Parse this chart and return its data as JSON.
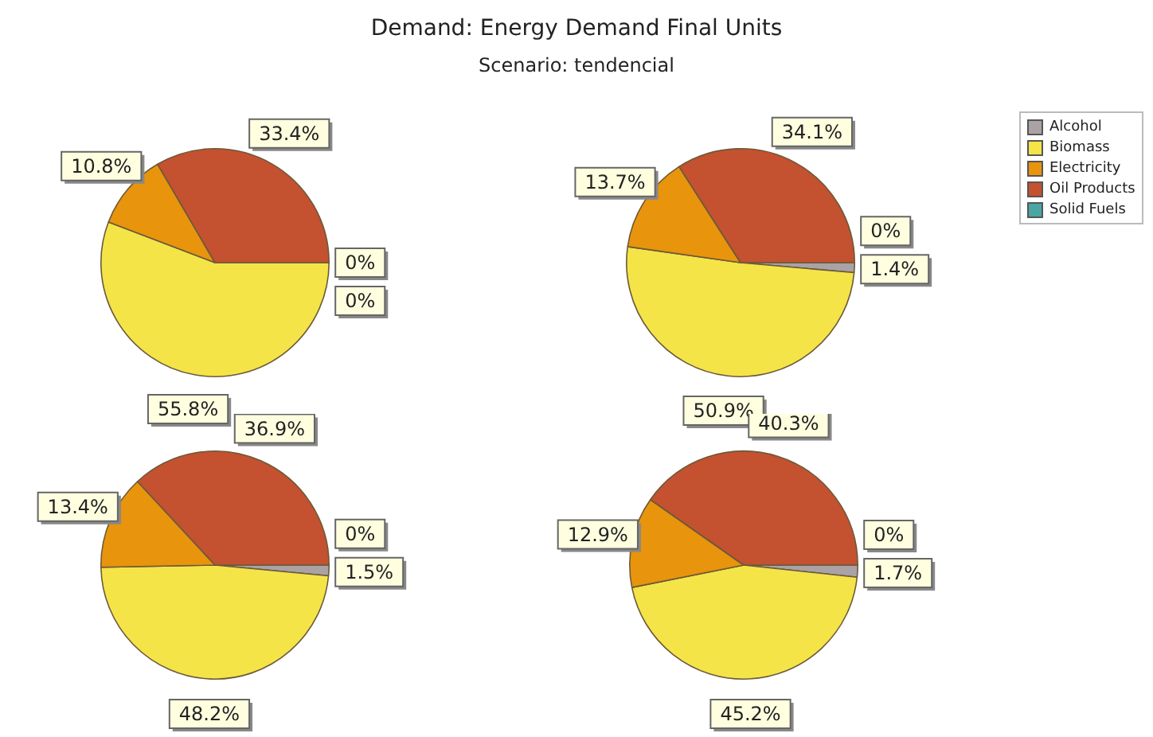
{
  "chart_data": [
    {
      "type": "pie",
      "title": "Demand: Energy Demand Final Units",
      "subtitle": "Scenario: tendencial",
      "legend": "right",
      "categories": [
        "Alcohol",
        "Biomass",
        "Electricity",
        "Oil Products",
        "Solid Fuels"
      ],
      "values": [
        0,
        55.8,
        10.8,
        33.4,
        0
      ],
      "colors": [
        "#aaa2a4",
        "#f5e447",
        "#e8940c",
        "#c4512f",
        "#4aa5a5"
      ],
      "value_labels": [
        "0%",
        "55.8%",
        "10.8%",
        "33.4%",
        "0%"
      ]
    },
    {
      "type": "pie",
      "categories": [
        null,
        null,
        null,
        null,
        null
      ],
      "values": [
        1.4,
        50.9,
        13.7,
        34.1,
        0
      ],
      "colors": [
        "#aaa2a4",
        "#f5e447",
        "#e8940c",
        "#c4512f",
        "#4aa5a5"
      ],
      "value_labels": [
        "1.4%",
        "50.9%",
        "13.7%",
        "34.1%",
        "0%"
      ]
    },
    {
      "type": "pie",
      "categories": [
        null,
        null,
        null,
        null,
        null
      ],
      "values": [
        1.5,
        48.2,
        13.4,
        36.9,
        0
      ],
      "colors": [
        "#aaa2a4",
        "#f5e447",
        "#e8940c",
        "#c4512f",
        "#4aa5a5"
      ],
      "value_labels": [
        "1.5%",
        "48.2%",
        "13.4%",
        "36.9%",
        "0%"
      ]
    },
    {
      "type": "pie",
      "categories": [
        null,
        null,
        null,
        null,
        null
      ],
      "values": [
        1.7,
        45.2,
        12.9,
        40.3,
        0
      ],
      "colors": [
        "#aaa2a4",
        "#f5e447",
        "#e8940c",
        "#c4512f",
        "#4aa5a5"
      ],
      "value_labels": [
        "1.7%",
        "45.2%",
        "12.9%",
        "40.3%",
        "0%"
      ]
    }
  ]
}
